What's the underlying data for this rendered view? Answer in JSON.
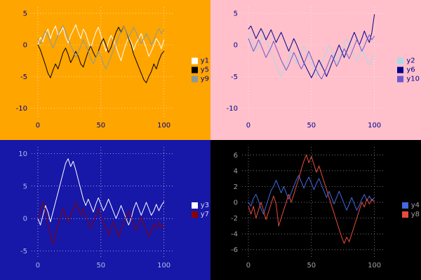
{
  "chart_data": [
    {
      "type": "line",
      "position": "top-left",
      "title": "",
      "xlabel": "",
      "ylabel": "",
      "bg": "#ffa500",
      "tick_color": "#00008b",
      "grid_color": "#ffffff",
      "legend_text_color": "#00008b",
      "legend_position": "center right",
      "grid": true,
      "xticks": [
        0,
        50,
        100
      ],
      "yticks": [
        5,
        0,
        -5,
        -10
      ],
      "xlim": [
        -5,
        108
      ],
      "ylim": [
        -11.5,
        6
      ],
      "x_step": 2,
      "series": [
        {
          "name": "y1",
          "color": "#ffffff",
          "values": [
            0,
            1.2,
            0.5,
            1.8,
            2.5,
            1.0,
            2.2,
            3.0,
            1.5,
            2.0,
            2.8,
            1.2,
            0.3,
            1.5,
            2.3,
            3.2,
            2.0,
            1.0,
            2.5,
            1.8,
            0.5,
            -0.5,
            0.8,
            2.0,
            2.8,
            1.5,
            0.2,
            -1.0,
            0.5,
            1.5,
            0.8,
            -0.3,
            -1.5,
            -2.5,
            -1.0,
            0.2,
            1.2,
            0.5,
            -0.8,
            0.3,
            1.0,
            1.8,
            0.6,
            -0.5,
            -1.8,
            -1.0,
            0.0,
            1.0,
            0.4,
            -0.6,
            0.8
          ]
        },
        {
          "name": "y5",
          "color": "#000000",
          "values": [
            0,
            -0.8,
            -2.0,
            -3.2,
            -4.5,
            -5.2,
            -4.0,
            -3.0,
            -3.8,
            -2.5,
            -1.2,
            -0.5,
            -1.5,
            -2.8,
            -2.0,
            -1.0,
            -1.8,
            -3.0,
            -3.5,
            -2.2,
            -1.0,
            -0.2,
            -1.2,
            -2.0,
            -1.0,
            0.2,
            1.0,
            0.0,
            -1.2,
            -0.4,
            0.8,
            2.0,
            2.8,
            2.0,
            3.0,
            2.2,
            1.0,
            0.0,
            -1.5,
            -2.5,
            -3.5,
            -4.5,
            -5.5,
            -6.0,
            -5.0,
            -4.2,
            -3.0,
            -3.8,
            -2.5,
            -1.5,
            -1.0
          ]
        },
        {
          "name": "y9",
          "color": "#879b9b",
          "values": [
            1.0,
            0.2,
            1.2,
            2.2,
            1.5,
            0.5,
            -0.5,
            0.5,
            1.5,
            2.5,
            3.0,
            2.0,
            1.0,
            0.0,
            -1.0,
            -2.0,
            -1.2,
            -0.2,
            0.8,
            0.0,
            -1.0,
            -2.2,
            -3.0,
            -2.0,
            -1.0,
            -1.8,
            -3.0,
            -3.8,
            -2.8,
            -1.8,
            -0.8,
            0.2,
            1.2,
            2.2,
            3.0,
            2.2,
            1.2,
            2.0,
            2.8,
            2.0,
            1.0,
            0.2,
            1.0,
            1.8,
            1.0,
            0.0,
            0.8,
            1.8,
            2.6,
            1.8,
            2.4
          ]
        }
      ]
    },
    {
      "type": "line",
      "position": "top-right",
      "title": "",
      "xlabel": "",
      "ylabel": "",
      "bg": "#ffc0cb",
      "tick_color": "#00008b",
      "grid_color": "#ffffff",
      "legend_text_color": "#00008b",
      "legend_position": "center right",
      "grid": true,
      "xticks": [
        0,
        50,
        100
      ],
      "yticks": [
        5,
        0,
        -5,
        -10
      ],
      "xlim": [
        -5,
        108
      ],
      "ylim": [
        -11.5,
        6
      ],
      "x_step": 2,
      "series": [
        {
          "name": "y2",
          "color": "#add8e6",
          "values": [
            2.0,
            1.0,
            0.0,
            -1.0,
            -0.2,
            0.8,
            1.6,
            0.8,
            -0.2,
            -1.2,
            -2.2,
            -3.2,
            -4.2,
            -5.0,
            -4.0,
            -3.0,
            -2.0,
            -1.0,
            -2.0,
            -3.0,
            -2.2,
            -1.2,
            -0.2,
            -1.0,
            -2.0,
            -3.0,
            -4.0,
            -4.8,
            -4.0,
            -3.0,
            -2.0,
            -1.0,
            0.0,
            -0.8,
            -1.8,
            -2.8,
            -2.0,
            -1.0,
            0.0,
            1.0,
            0.2,
            -0.8,
            -1.8,
            -2.6,
            -1.6,
            -0.6,
            -1.4,
            -2.4,
            -3.2,
            -2.2,
            -1.2
          ]
        },
        {
          "name": "y6",
          "color": "#00008b",
          "values": [
            2.5,
            3.0,
            2.0,
            1.0,
            1.8,
            2.6,
            1.8,
            0.8,
            1.6,
            2.4,
            1.4,
            0.4,
            1.2,
            2.0,
            1.0,
            0.0,
            -1.0,
            0.0,
            1.0,
            0.2,
            -0.8,
            -1.8,
            -2.8,
            -3.6,
            -4.4,
            -5.2,
            -4.4,
            -3.4,
            -2.4,
            -3.2,
            -4.0,
            -5.0,
            -4.0,
            -3.0,
            -2.0,
            -1.0,
            0.0,
            -1.0,
            -2.0,
            -1.0,
            0.0,
            1.0,
            2.0,
            1.0,
            0.0,
            1.0,
            2.2,
            1.2,
            0.4,
            2.0,
            4.8
          ]
        },
        {
          "name": "y10",
          "color": "#6a5acd",
          "values": [
            1.0,
            0.0,
            -1.0,
            -0.2,
            0.8,
            0.0,
            -1.0,
            -2.0,
            -1.2,
            -0.4,
            0.6,
            -0.4,
            -1.4,
            -2.4,
            -3.2,
            -4.0,
            -3.2,
            -2.2,
            -1.2,
            -2.0,
            -3.0,
            -3.8,
            -3.0,
            -2.0,
            -1.0,
            -2.0,
            -3.0,
            -4.0,
            -4.8,
            -5.4,
            -4.6,
            -3.6,
            -2.6,
            -1.6,
            -2.4,
            -3.4,
            -2.6,
            -1.6,
            -0.6,
            -1.4,
            -2.2,
            -1.2,
            -0.2,
            0.8,
            0.0,
            -1.0,
            -0.2,
            0.8,
            1.6,
            0.8,
            1.4
          ]
        }
      ]
    },
    {
      "type": "line",
      "position": "bottom-left",
      "title": "",
      "xlabel": "",
      "ylabel": "",
      "bg": "#1717a8",
      "tick_color": "#b4b9e6",
      "grid_color": "#ffffff",
      "legend_text_color": "#d4d6ee",
      "legend_position": "center right",
      "grid": true,
      "xticks": [
        0,
        50,
        100
      ],
      "yticks": [
        10,
        5,
        0,
        -5
      ],
      "xlim": [
        -5,
        108
      ],
      "ylim": [
        -6,
        11
      ],
      "x_step": 2,
      "series": [
        {
          "name": "y3",
          "color": "#ffffff",
          "values": [
            0.0,
            -1.0,
            0.5,
            2.0,
            1.0,
            -0.5,
            1.0,
            2.5,
            4.0,
            5.5,
            7.0,
            8.5,
            9.2,
            8.0,
            8.8,
            7.5,
            6.0,
            4.5,
            3.0,
            2.0,
            3.0,
            2.0,
            1.0,
            2.2,
            3.2,
            2.2,
            1.2,
            2.0,
            3.0,
            2.0,
            1.0,
            0.0,
            1.0,
            2.0,
            1.0,
            0.0,
            -1.0,
            0.0,
            1.5,
            2.5,
            1.5,
            0.5,
            1.5,
            2.5,
            1.5,
            0.5,
            1.2,
            2.2,
            1.2,
            2.0,
            2.6
          ]
        },
        {
          "name": "y7",
          "color": "#8b0000",
          "values": [
            0.0,
            1.0,
            2.5,
            1.0,
            -1.0,
            -2.5,
            -4.0,
            -2.5,
            -1.0,
            0.5,
            1.5,
            0.5,
            -0.5,
            0.5,
            1.5,
            2.5,
            1.5,
            0.5,
            1.5,
            0.5,
            -0.5,
            -1.5,
            -0.5,
            0.5,
            1.5,
            0.5,
            -0.5,
            -1.5,
            -2.5,
            -1.5,
            -0.5,
            -1.5,
            -2.8,
            -1.8,
            -0.8,
            0.2,
            1.2,
            0.2,
            -0.8,
            -1.8,
            -0.8,
            0.2,
            -0.8,
            -1.8,
            -2.8,
            -1.8,
            -0.8,
            -1.6,
            -0.6,
            -1.4,
            -0.8
          ]
        }
      ]
    },
    {
      "type": "line",
      "position": "bottom-right",
      "title": "",
      "xlabel": "",
      "ylabel": "",
      "bg": "#000000",
      "tick_color": "#a0a0a0",
      "grid_color": "#b8b8b8",
      "legend_text_color": "#a0a0a0",
      "legend_position": "center right",
      "grid": true,
      "xticks": [
        0,
        50,
        100
      ],
      "yticks": [
        6,
        4,
        2,
        0,
        -2,
        -4,
        -6
      ],
      "xlim": [
        -5,
        108
      ],
      "ylim": [
        -7,
        7
      ],
      "x_step": 2,
      "series": [
        {
          "name": "y4",
          "color": "#4169e1",
          "values": [
            0.0,
            -0.5,
            0.5,
            1.0,
            0.2,
            -0.8,
            -1.5,
            -0.5,
            0.5,
            1.5,
            2.0,
            2.8,
            2.0,
            1.2,
            2.0,
            1.2,
            0.4,
            1.2,
            2.0,
            2.8,
            3.4,
            2.6,
            1.8,
            2.6,
            3.2,
            2.4,
            1.6,
            2.4,
            3.0,
            2.2,
            1.4,
            0.6,
            1.4,
            0.6,
            -0.2,
            0.6,
            1.4,
            0.6,
            -0.2,
            -1.0,
            -0.2,
            0.6,
            -0.2,
            -1.0,
            -0.4,
            0.4,
            1.0,
            0.2,
            0.8,
            0.2,
            0.6
          ]
        },
        {
          "name": "y8",
          "color": "#e74c3c",
          "values": [
            -0.5,
            -1.5,
            -0.5,
            -2.0,
            -1.0,
            0.0,
            -1.0,
            -2.2,
            -1.2,
            -0.2,
            0.8,
            -0.2,
            -3.0,
            -2.0,
            -1.0,
            0.0,
            1.0,
            0.0,
            1.0,
            2.0,
            3.0,
            4.2,
            5.2,
            6.0,
            5.0,
            5.8,
            4.8,
            3.8,
            4.6,
            3.6,
            2.6,
            1.6,
            0.6,
            -0.4,
            -1.4,
            -2.4,
            -3.4,
            -4.4,
            -5.2,
            -4.4,
            -5.0,
            -4.0,
            -3.0,
            -2.0,
            -1.0,
            0.0,
            -0.6,
            0.4,
            -0.2,
            0.4,
            0.0
          ]
        }
      ]
    }
  ]
}
